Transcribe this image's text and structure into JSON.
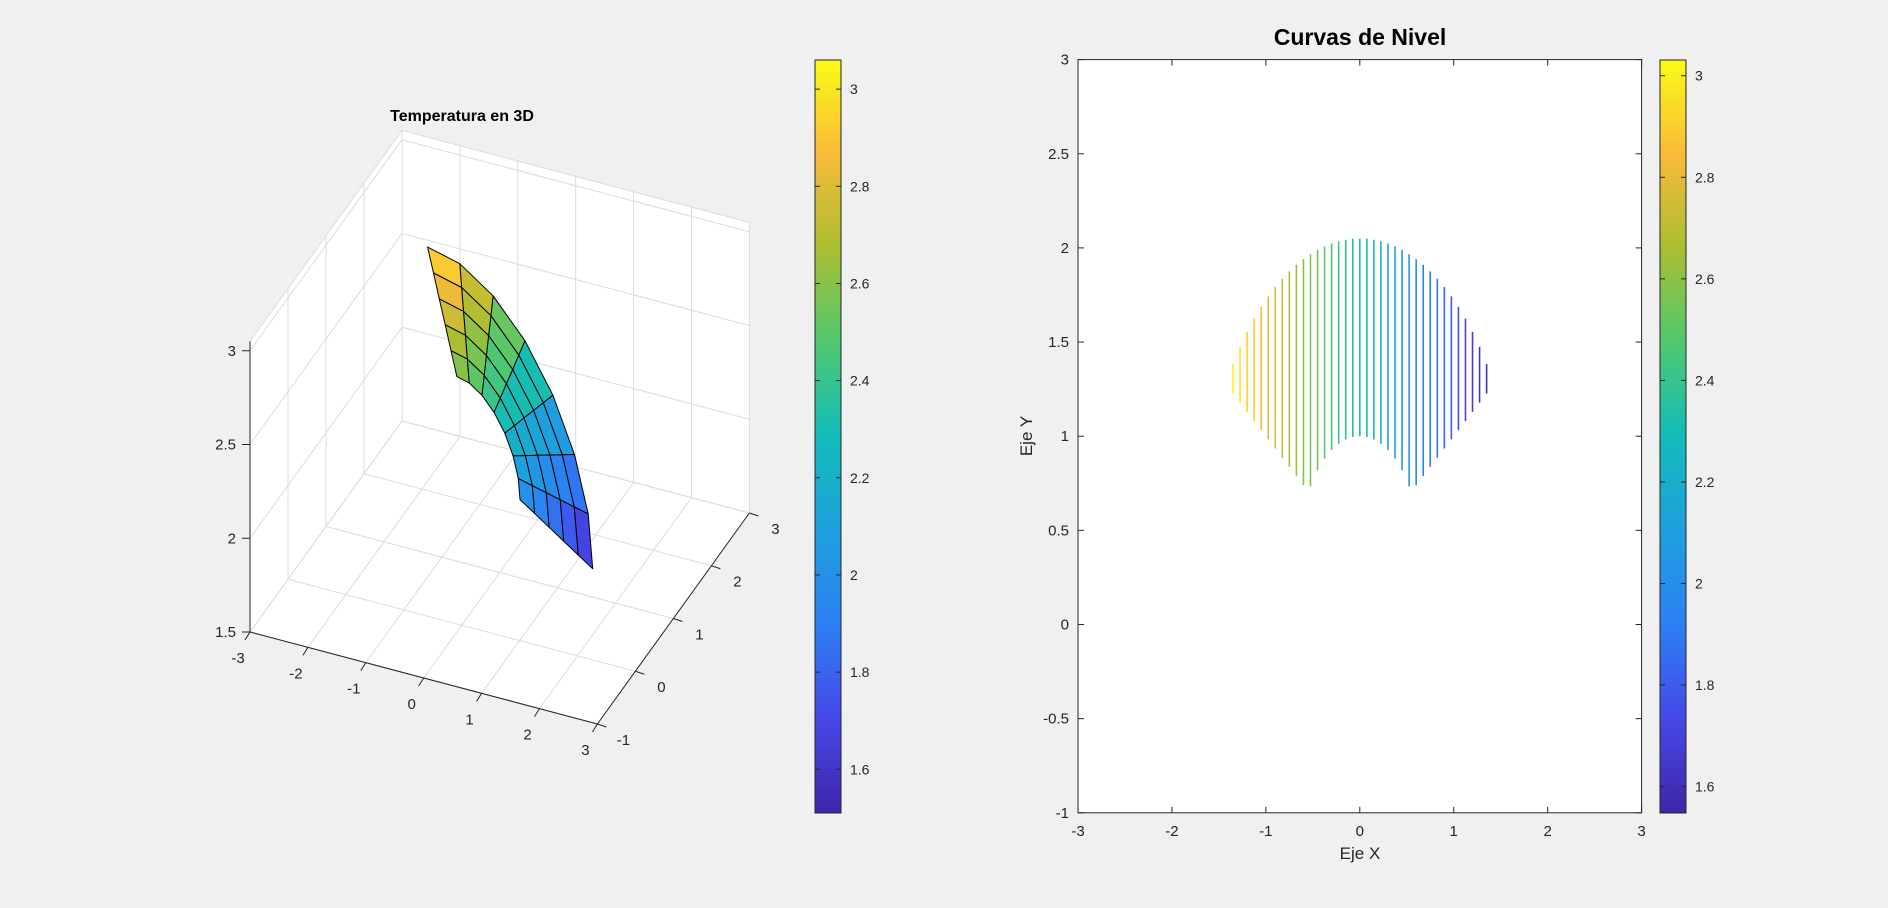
{
  "window": {
    "background": "#f0f0f0"
  },
  "chart_data": [
    {
      "type": "surface",
      "title": "Temperatura en 3D",
      "xlim": [
        -3,
        3
      ],
      "ylim": [
        -1,
        3
      ],
      "zlim": [
        1.5,
        3.05
      ],
      "xticks": [
        -3,
        -2,
        -1,
        0,
        1,
        2,
        3
      ],
      "yticks": [
        -1,
        0,
        1,
        2,
        3
      ],
      "zticks": [
        1.5,
        2,
        2.5,
        3
      ],
      "grid": true,
      "domain": {
        "center": [
          0,
          0.35
        ],
        "r": [
          0.65,
          1.7
        ],
        "theta_deg": [
          33,
          147
        ]
      },
      "mesh": {
        "nr": 5,
        "ntheta": 7
      },
      "z_function": {
        "form": "z = a + b*x",
        "a": 2.3,
        "b": -0.52
      },
      "colormap": "parula",
      "colorbar": {
        "range": [
          1.51,
          3.06
        ],
        "ticks": [
          1.6,
          1.8,
          2,
          2.2,
          2.4,
          2.6,
          2.8,
          3
        ],
        "tick_labels": [
          "1.6",
          "1.8",
          "2",
          "2.2",
          "2.4",
          "2.6",
          "2.8",
          "3"
        ],
        "placement": "right"
      }
    },
    {
      "type": "contour",
      "title": "Curvas de Nivel",
      "xlabel": "Eje X",
      "ylabel": "Eje Y",
      "xlim": [
        -3,
        3
      ],
      "ylim": [
        -1,
        3
      ],
      "xticks": [
        -3,
        -2,
        -1,
        0,
        1,
        2,
        3
      ],
      "yticks": [
        -1,
        -0.5,
        0,
        0.5,
        1,
        1.5,
        2,
        2.5,
        3
      ],
      "grid": false,
      "levels": 37,
      "contour_x_range": [
        -1.35,
        1.35
      ],
      "domain": {
        "center": [
          0,
          0.35
        ],
        "r": [
          0.65,
          1.7
        ],
        "theta_deg": [
          33,
          147
        ]
      },
      "z_function": {
        "form": "z = a + b*x",
        "a": 2.3,
        "b": -0.52
      },
      "colormap": "parula",
      "colorbar": {
        "range": [
          1.548,
          3.031
        ],
        "ticks": [
          1.6,
          1.8,
          2,
          2.2,
          2.4,
          2.6,
          2.8,
          3
        ],
        "tick_labels": [
          "1.6",
          "1.8",
          "2",
          "2.2",
          "2.4",
          "2.6",
          "2.8",
          "3"
        ],
        "placement": "right"
      }
    }
  ]
}
